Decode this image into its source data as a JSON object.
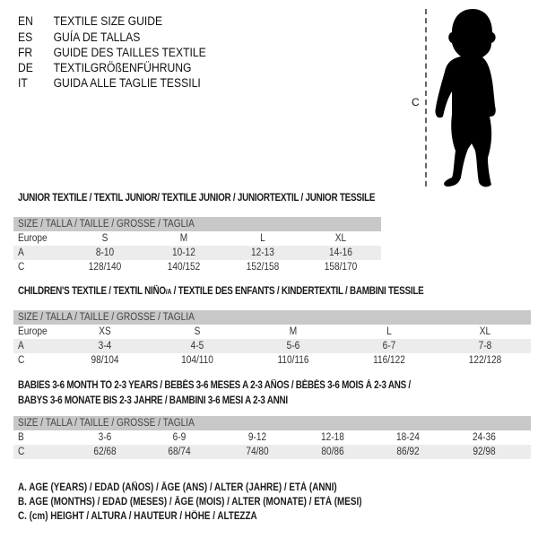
{
  "languages": [
    {
      "code": "EN",
      "text": "TEXTILE SIZE GUIDE"
    },
    {
      "code": "ES",
      "text": "GUÍA DE TALLAS"
    },
    {
      "code": "FR",
      "text": "GUIDE DES TAILLES TEXTILE"
    },
    {
      "code": "DE",
      "text": "TEXTILGRÖßENFÜHRUNG"
    },
    {
      "code": "IT",
      "text": "GUIDA ALLE TAGLIE TESSILI"
    }
  ],
  "figure": {
    "label": "C",
    "icon": "child-silhouette-icon"
  },
  "size_header": "SIZE / TALLA / TAILLE / GRÖSSE / TAGLIA",
  "junior": {
    "title": "JUNIOR TEXTILE / TEXTIL JUNIOR/ TEXTILE JUNIOR / JUNIORTEXTIL / JUNIOR TESSILE",
    "rows": [
      {
        "label": "Europe",
        "cells": [
          "S",
          "M",
          "L",
          "XL"
        ]
      },
      {
        "label": "A",
        "cells": [
          "8-10",
          "10-12",
          "12-13",
          "14-16"
        ]
      },
      {
        "label": "C",
        "cells": [
          "128/140",
          "140/152",
          "152/158",
          "158/170"
        ]
      }
    ]
  },
  "children": {
    "title_pre": "CHILDREN'S TEXTILE / TEXTIL NIÑO",
    "title_sub": "/A",
    "title_post": " / TEXTILE DES ENFANTS / KINDERTEXTIL / BAMBINI TESSILE",
    "rows": [
      {
        "label": "Europe",
        "cells": [
          "XS",
          "S",
          "M",
          "L",
          "XL"
        ]
      },
      {
        "label": "A",
        "cells": [
          "3-4",
          "4-5",
          "5-6",
          "6-7",
          "7-8"
        ]
      },
      {
        "label": "C",
        "cells": [
          "98/104",
          "104/110",
          "110/116",
          "116/122",
          "122/128"
        ]
      }
    ]
  },
  "babies": {
    "title_line1": "BABIES 3-6 MONTH TO 2-3 YEARS / BEBÉS 3-6 MESES A 2-3 AÑOS / BÉBÉS 3-6 MOIS À 2-3 ANS /",
    "title_line2": "BABYS 3-6 MONATE BIS 2-3 JAHRE / BAMBINI 3-6 MESI A 2-3 ANNI",
    "rows": [
      {
        "label": "B",
        "cells": [
          "3-6",
          "6-9",
          "9-12",
          "12-18",
          "18-24",
          "24-36"
        ]
      },
      {
        "label": "C",
        "cells": [
          "62/68",
          "68/74",
          "74/80",
          "80/86",
          "86/92",
          "92/98"
        ]
      }
    ]
  },
  "legend": [
    "A. AGE (YEARS) / EDAD (AÑOS) / ÂGE (ANS) / ALTER (JAHRE) / ETÀ (ANNI)",
    "B. AGE (MONTHS) / EDAD (MESES) / ÂGE (MOIS) / ALTER (MONATE) / ETÀ (MESI)",
    "C. (cm) HEIGHT / ALTURA / HAUTEUR / HÖHE / ALTEZZA"
  ],
  "colors": {
    "header_band": "#c8c8c8",
    "shaded_row": "#ececec"
  }
}
